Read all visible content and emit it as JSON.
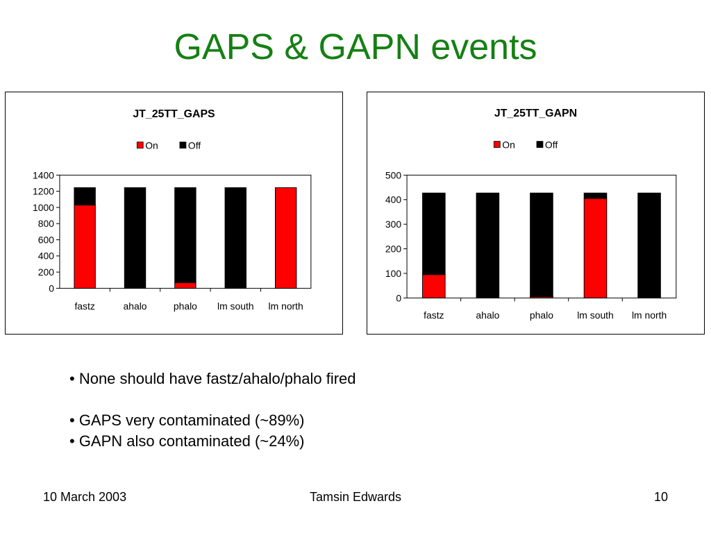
{
  "slide": {
    "title": "GAPS & GAPN events",
    "bullets": [
      "• None should have fastz/ahalo/phalo fired",
      "• GAPS very contaminated (~89%)",
      "• GAPN also contaminated (~24%)"
    ],
    "footer": {
      "date": "10 March 2003",
      "author": "Tamsin Edwards",
      "page": "10"
    }
  },
  "colors": {
    "title": "#158014",
    "on": "#ff0000",
    "off": "#000000"
  },
  "chart_data": [
    {
      "type": "bar",
      "stacked": true,
      "title": "JT_25TT_GAPS",
      "categories": [
        "fastz",
        "ahalo",
        "phalo",
        "lm south",
        "lm north"
      ],
      "series": [
        {
          "name": "On",
          "color": "#ff0000",
          "values": [
            1030,
            0,
            70,
            0,
            1245
          ]
        },
        {
          "name": "Off",
          "color": "#000000",
          "values": [
            215,
            1245,
            1175,
            1245,
            0
          ]
        }
      ],
      "ylim": [
        0,
        1400
      ],
      "yticks": [
        0,
        200,
        400,
        600,
        800,
        1000,
        1200,
        1400
      ],
      "grid": false,
      "legend": "top"
    },
    {
      "type": "bar",
      "stacked": true,
      "title": "JT_25TT_GAPN",
      "categories": [
        "fastz",
        "ahalo",
        "phalo",
        "lm south",
        "lm north"
      ],
      "series": [
        {
          "name": "On",
          "color": "#ff0000",
          "values": [
            95,
            0,
            5,
            405,
            0
          ]
        },
        {
          "name": "Off",
          "color": "#000000",
          "values": [
            332,
            427,
            422,
            22,
            427
          ]
        }
      ],
      "ylim": [
        0,
        500
      ],
      "yticks": [
        0,
        100,
        200,
        300,
        400,
        500
      ],
      "grid": false,
      "legend": "top"
    }
  ]
}
